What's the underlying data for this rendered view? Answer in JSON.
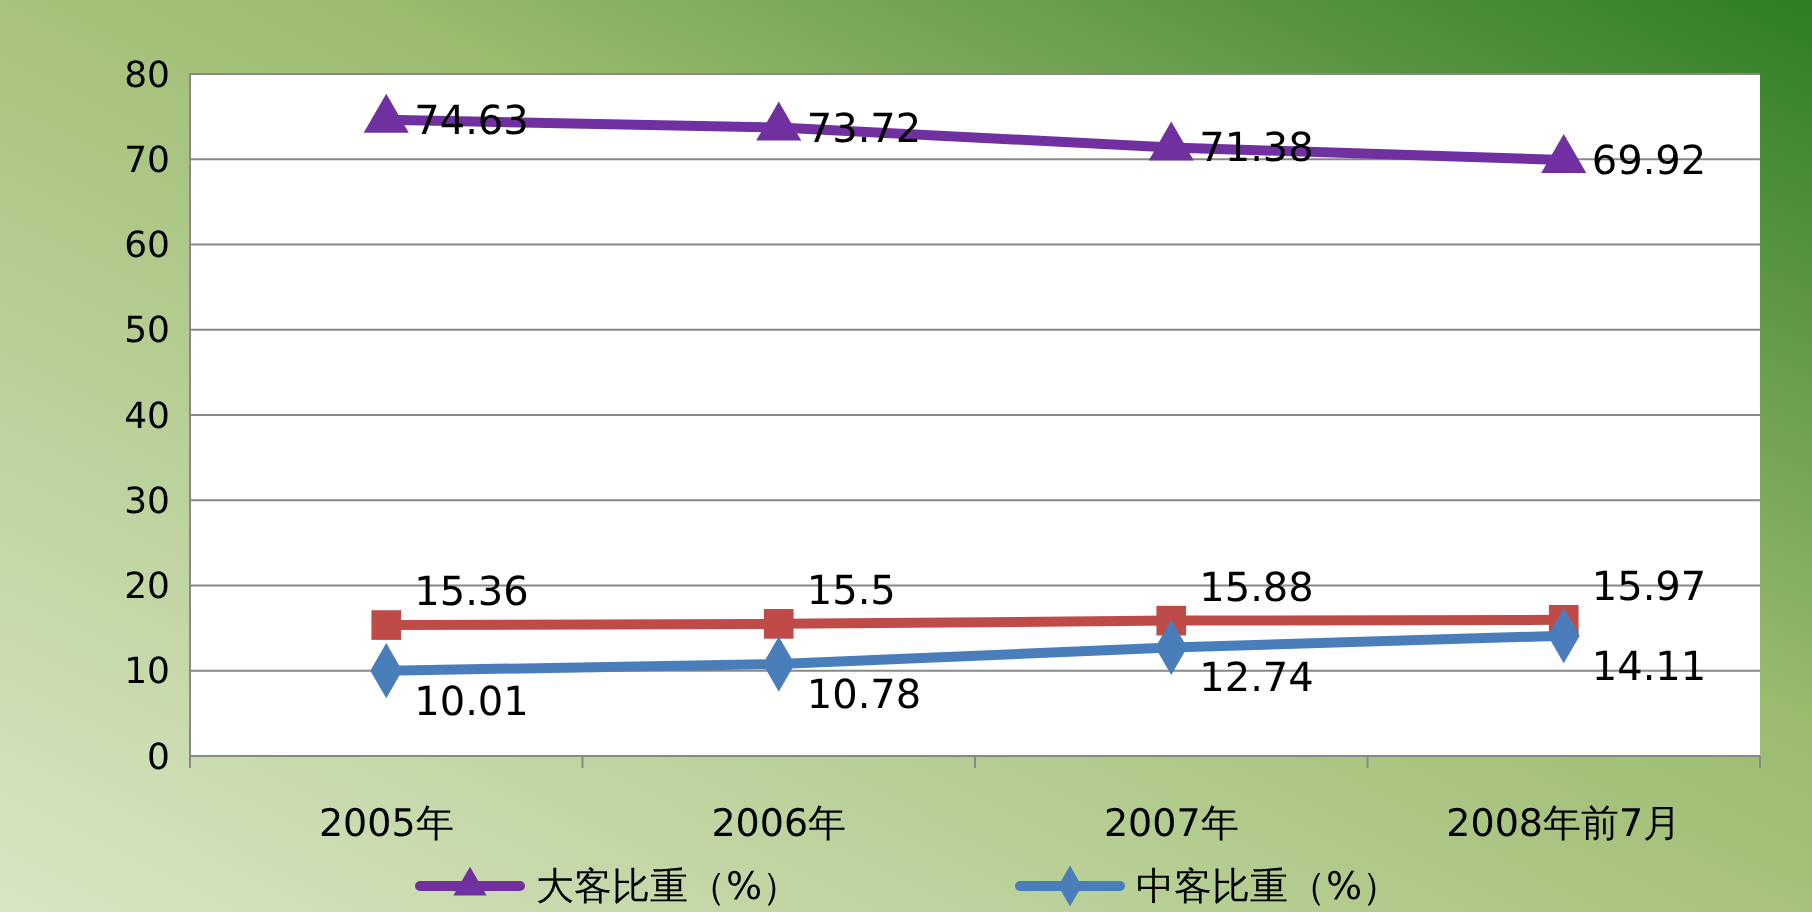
{
  "chart_data": {
    "type": "line",
    "categories": [
      "2005年",
      "2006年",
      "2007年",
      "2008年前7月"
    ],
    "series": [
      {
        "name": "大客比重（%）",
        "color": "#7030a0",
        "marker": "triangle",
        "values": [
          74.63,
          73.72,
          71.38,
          69.92
        ]
      },
      {
        "color": "#be4b48",
        "marker": "square",
        "values": [
          15.36,
          15.5,
          15.88,
          15.97
        ]
      },
      {
        "name": "中客比重（%）",
        "color": "#4a7ebb",
        "marker": "diamond",
        "values": [
          10.01,
          10.78,
          12.74,
          14.11
        ]
      }
    ],
    "ylim": [
      0,
      80
    ],
    "yticks": [
      0,
      10,
      20,
      30,
      40,
      50,
      60,
      70,
      80
    ],
    "grid": "y",
    "data_labels": true,
    "legend": "bottom"
  }
}
